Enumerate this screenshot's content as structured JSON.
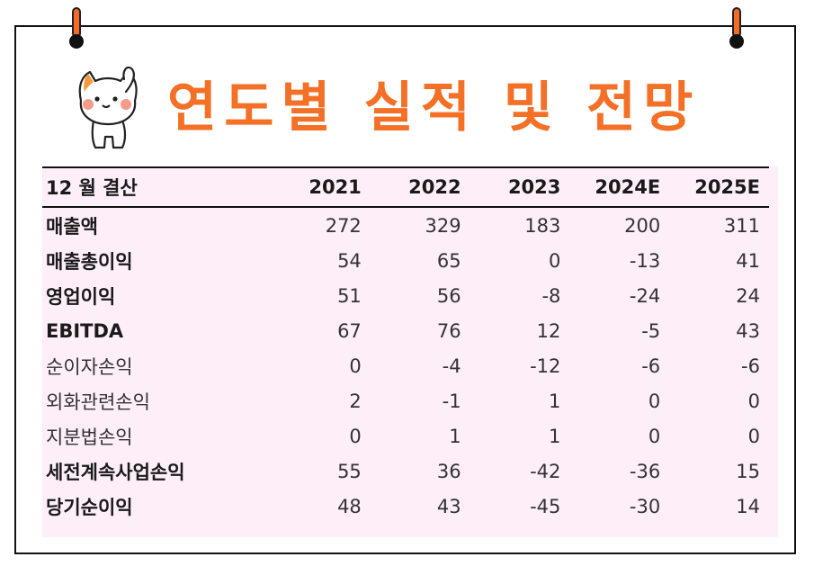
{
  "title": "연도별 실적 및 전망",
  "table": {
    "header": [
      "12 월 결산",
      "2021",
      "2022",
      "2023",
      "2024E",
      "2025E"
    ],
    "rows": [
      {
        "label": "매출액",
        "bold": true,
        "values": [
          "272",
          "329",
          "183",
          "200",
          "311"
        ]
      },
      {
        "label": "매출총이익",
        "bold": true,
        "values": [
          "54",
          "65",
          "0",
          "-13",
          "41"
        ]
      },
      {
        "label": "영업이익",
        "bold": true,
        "values": [
          "51",
          "56",
          "-8",
          "-24",
          "24"
        ]
      },
      {
        "label": "EBITDA",
        "bold": true,
        "values": [
          "67",
          "76",
          "12",
          "-5",
          "43"
        ]
      },
      {
        "label": "순이자손익",
        "bold": false,
        "values": [
          "0",
          "-4",
          "-12",
          "-6",
          "-6"
        ]
      },
      {
        "label": "외화관련손익",
        "bold": false,
        "values": [
          "2",
          "-1",
          "1",
          "0",
          "0"
        ]
      },
      {
        "label": "지분법손익",
        "bold": false,
        "values": [
          "0",
          "1",
          "1",
          "0",
          "0"
        ]
      },
      {
        "label": "세전계속사업손익",
        "bold": true,
        "values": [
          "55",
          "36",
          "-42",
          "-36",
          "15"
        ]
      },
      {
        "label": "당기순이익",
        "bold": true,
        "values": [
          "48",
          "43",
          "-45",
          "-30",
          "14"
        ]
      }
    ]
  },
  "colors": {
    "accent": "#f37026",
    "table_bg": "#fdeef7",
    "border": "#111111"
  },
  "icons": [
    "pin-icon",
    "cat-mascot-icon"
  ]
}
